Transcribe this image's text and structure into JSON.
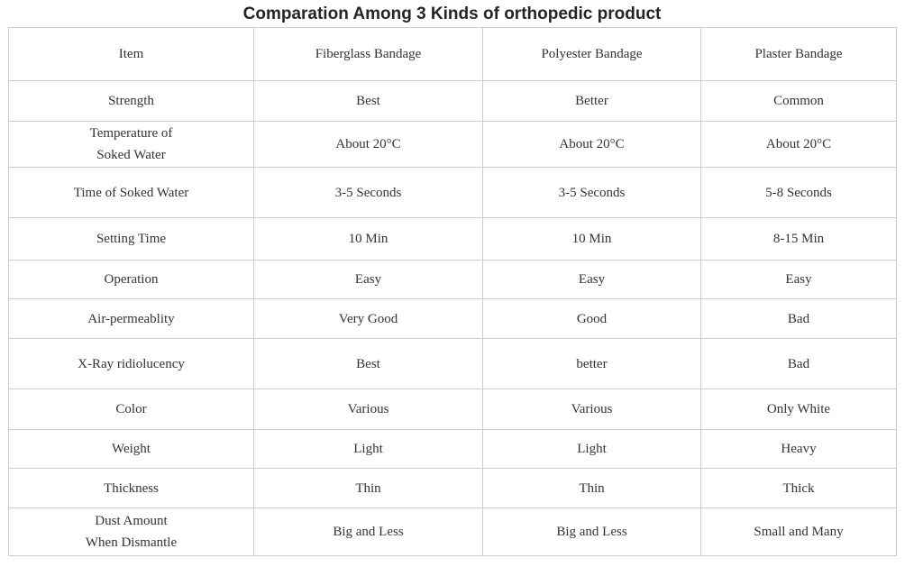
{
  "title": "Comparation Among 3 Kinds of orthopedic product",
  "table": {
    "type": "table",
    "header": [
      "Item",
      "Fiberglass Bandage",
      "Polyester Bandage",
      "Plaster Bandage"
    ],
    "rows": [
      [
        "Strength",
        "Best",
        "Better",
        "Common"
      ],
      [
        [
          "Temperature of",
          "Soked Water"
        ],
        "About 20°C",
        "About 20°C",
        "About 20°C"
      ],
      [
        "Time of Soked Water",
        "3-5 Seconds",
        "3-5 Seconds",
        "5-8 Seconds"
      ],
      [
        "Setting Time",
        "10 Min",
        "10 Min",
        "8-15 Min"
      ],
      [
        "Operation",
        "Easy",
        "Easy",
        "Easy"
      ],
      [
        "Air-permeablity",
        "Very Good",
        "Good",
        "Bad"
      ],
      [
        "X-Ray ridiolucency",
        "Best",
        "better",
        "Bad"
      ],
      [
        "Color",
        "Various",
        "Various",
        "Only White"
      ],
      [
        "Weight",
        "Light",
        "Light",
        "Heavy"
      ],
      [
        "Thickness",
        "Thin",
        "Thin",
        "Thick"
      ],
      [
        [
          "Dust Amount",
          "When Dismantle"
        ],
        "Big and Less",
        "Big and Less",
        "Small and Many"
      ]
    ]
  },
  "colors": {
    "border": "#cccccc",
    "cell_text": "#333333",
    "title_text": "#252525",
    "background": "#ffffff"
  }
}
